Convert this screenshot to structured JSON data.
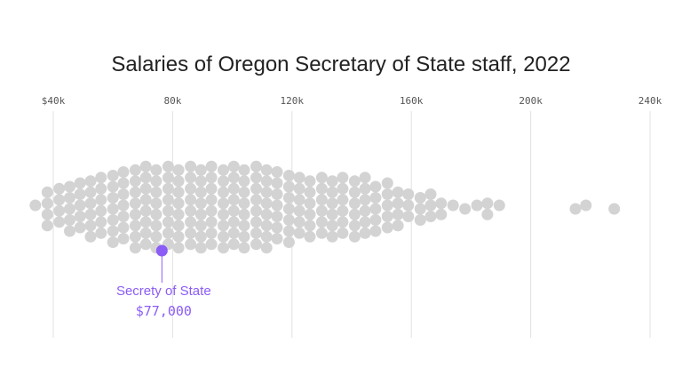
{
  "chart_data": {
    "type": "scatter",
    "subtype": "beeswarm",
    "title": "Salaries of Oregon Secretary of State staff, 2022",
    "xlabel": "",
    "ylabel": "",
    "xlim": [
      40000,
      240000
    ],
    "x_ticks": [
      {
        "value": 40000,
        "label": "$40k"
      },
      {
        "value": 80000,
        "label": "80k"
      },
      {
        "value": 120000,
        "label": "120k"
      },
      {
        "value": 160000,
        "label": "160k"
      },
      {
        "value": 200000,
        "label": "200k"
      },
      {
        "value": 240000,
        "label": "240k"
      }
    ],
    "grid": true,
    "colors": {
      "point": "#d3d3d3",
      "highlight": "#8b5cf6",
      "grid": "#e2e2e2"
    },
    "bins": [
      {
        "salary": 34000,
        "count": 1
      },
      {
        "salary": 38000,
        "count": 4
      },
      {
        "salary": 42000,
        "count": 4
      },
      {
        "salary": 45500,
        "count": 5
      },
      {
        "salary": 49000,
        "count": 5
      },
      {
        "salary": 52500,
        "count": 6
      },
      {
        "salary": 56000,
        "count": 6
      },
      {
        "salary": 60000,
        "count": 7
      },
      {
        "salary": 63500,
        "count": 7
      },
      {
        "salary": 67500,
        "count": 8
      },
      {
        "salary": 71000,
        "count": 8
      },
      {
        "salary": 74500,
        "count": 8
      },
      {
        "salary": 78500,
        "count": 8
      },
      {
        "salary": 82000,
        "count": 8
      },
      {
        "salary": 86000,
        "count": 8
      },
      {
        "salary": 89500,
        "count": 8
      },
      {
        "salary": 93000,
        "count": 8
      },
      {
        "salary": 97000,
        "count": 8
      },
      {
        "salary": 100500,
        "count": 8
      },
      {
        "salary": 104000,
        "count": 8
      },
      {
        "salary": 108000,
        "count": 8
      },
      {
        "salary": 111500,
        "count": 8
      },
      {
        "salary": 115000,
        "count": 7
      },
      {
        "salary": 119000,
        "count": 7
      },
      {
        "salary": 122500,
        "count": 6
      },
      {
        "salary": 126000,
        "count": 6
      },
      {
        "salary": 130000,
        "count": 6
      },
      {
        "salary": 133500,
        "count": 6
      },
      {
        "salary": 137000,
        "count": 6
      },
      {
        "salary": 141000,
        "count": 6
      },
      {
        "salary": 144500,
        "count": 6
      },
      {
        "salary": 148000,
        "count": 5
      },
      {
        "salary": 152000,
        "count": 5
      },
      {
        "salary": 155500,
        "count": 4
      },
      {
        "salary": 159000,
        "count": 3
      },
      {
        "salary": 163000,
        "count": 3
      },
      {
        "salary": 166500,
        "count": 3
      },
      {
        "salary": 170000,
        "count": 2
      },
      {
        "salary": 174000,
        "count": 1
      },
      {
        "salary": 178000,
        "count": 1
      },
      {
        "salary": 182000,
        "count": 1
      },
      {
        "salary": 185500,
        "count": 2
      },
      {
        "salary": 189500,
        "count": 1
      },
      {
        "salary": 215000,
        "count": 1
      },
      {
        "salary": 218500,
        "count": 1
      },
      {
        "salary": 228000,
        "count": 1
      }
    ],
    "highlight": {
      "salary": 77000,
      "label": "Secrety of State",
      "value_label": "$77,000"
    }
  }
}
